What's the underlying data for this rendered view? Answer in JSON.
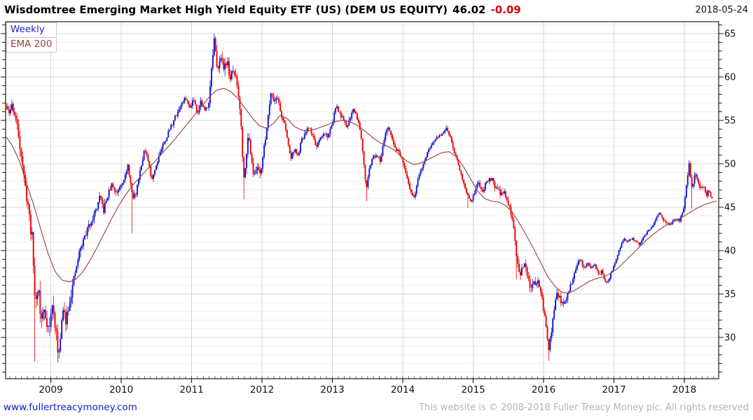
{
  "header": {
    "title": "Wisdomtree Emerging Market High Yield Equity ETF (US) (DEM US EQUITY)",
    "price": "46.02",
    "change": "-0.09",
    "date": "2018-05-24"
  },
  "legend": [
    {
      "label": "Weekly",
      "color": "#2424cc"
    },
    {
      "label": "EMA 200",
      "color": "#99403d"
    }
  ],
  "footer": {
    "site": "www.fullertreacymoney.com",
    "copyright": "This website is © 2008-2018 Fuller Treacy Money plc. All rights reserved"
  },
  "chart_data": {
    "type": "candlestick",
    "title": "Wisdomtree Emerging Market High Yield Equity ETF (US) (DEM US EQUITY)",
    "interval": "Weekly",
    "overlay": "EMA 200",
    "last_close": 46.02,
    "change": -0.09,
    "x_ticks": [
      2009,
      2010,
      2011,
      2012,
      2013,
      2014,
      2015,
      2016,
      2017,
      2018
    ],
    "y_ticks": [
      65,
      60,
      55,
      50,
      45,
      40,
      35,
      30
    ],
    "y_minor_step": 1,
    "x_range": [
      2008.36,
      2018.49
    ],
    "y_range": [
      25.2,
      66.4
    ],
    "up_color": "#1414cc",
    "down_color": "#ee0000",
    "ema_color": "#99403d",
    "grid_major_color": "#d4d4d4",
    "grid_minor_color": "#efefef",
    "weeks_per_year": 52.18,
    "close_anchors": [
      [
        2008.37,
        56.6
      ],
      [
        2008.4,
        55.6
      ],
      [
        2008.45,
        56.8
      ],
      [
        2008.5,
        55.2
      ],
      [
        2008.55,
        53.0
      ],
      [
        2008.6,
        50.0
      ],
      [
        2008.63,
        47.3
      ],
      [
        2008.67,
        45.8
      ],
      [
        2008.7,
        43.5
      ],
      [
        2008.74,
        41.0
      ],
      [
        2008.78,
        33.5
      ],
      [
        2008.82,
        36.4
      ],
      [
        2008.86,
        31.6
      ],
      [
        2008.9,
        33.4
      ],
      [
        2008.94,
        32.0
      ],
      [
        2008.98,
        30.8
      ],
      [
        2009.02,
        33.8
      ],
      [
        2009.06,
        31.6
      ],
      [
        2009.1,
        28.3
      ],
      [
        2009.14,
        30.0
      ],
      [
        2009.17,
        33.2
      ],
      [
        2009.21,
        32.0
      ],
      [
        2009.26,
        34.0
      ],
      [
        2009.32,
        36.2
      ],
      [
        2009.4,
        39.6
      ],
      [
        2009.48,
        41.6
      ],
      [
        2009.56,
        43.2
      ],
      [
        2009.64,
        44.6
      ],
      [
        2009.7,
        46.2
      ],
      [
        2009.75,
        44.6
      ],
      [
        2009.81,
        46.4
      ],
      [
        2009.87,
        47.6
      ],
      [
        2009.93,
        46.6
      ],
      [
        2010.0,
        47.8
      ],
      [
        2010.06,
        48.6
      ],
      [
        2010.1,
        49.8
      ],
      [
        2010.16,
        46.0
      ],
      [
        2010.21,
        46.6
      ],
      [
        2010.27,
        49.4
      ],
      [
        2010.33,
        51.6
      ],
      [
        2010.38,
        50.4
      ],
      [
        2010.43,
        48.2
      ],
      [
        2010.49,
        49.6
      ],
      [
        2010.55,
        51.4
      ],
      [
        2010.62,
        52.6
      ],
      [
        2010.7,
        54.2
      ],
      [
        2010.78,
        55.6
      ],
      [
        2010.85,
        56.8
      ],
      [
        2010.92,
        57.6
      ],
      [
        2010.97,
        56.4
      ],
      [
        2011.03,
        57.6
      ],
      [
        2011.08,
        55.9
      ],
      [
        2011.13,
        57.2
      ],
      [
        2011.19,
        56.0
      ],
      [
        2011.24,
        57.0
      ],
      [
        2011.28,
        60.5
      ],
      [
        2011.32,
        64.3
      ],
      [
        2011.36,
        60.8
      ],
      [
        2011.4,
        62.4
      ],
      [
        2011.45,
        61.2
      ],
      [
        2011.5,
        61.9
      ],
      [
        2011.55,
        59.8
      ],
      [
        2011.6,
        60.8
      ],
      [
        2011.65,
        58.9
      ],
      [
        2011.7,
        55.5
      ],
      [
        2011.74,
        48.0
      ],
      [
        2011.78,
        51.5
      ],
      [
        2011.81,
        53.2
      ],
      [
        2011.85,
        50.8
      ],
      [
        2011.89,
        48.3
      ],
      [
        2011.93,
        49.8
      ],
      [
        2011.98,
        49.0
      ],
      [
        2012.03,
        51.8
      ],
      [
        2012.08,
        55.0
      ],
      [
        2012.13,
        58.6
      ],
      [
        2012.17,
        57.2
      ],
      [
        2012.22,
        57.8
      ],
      [
        2012.27,
        55.6
      ],
      [
        2012.31,
        54.9
      ],
      [
        2012.36,
        52.8
      ],
      [
        2012.41,
        50.6
      ],
      [
        2012.46,
        51.8
      ],
      [
        2012.51,
        50.8
      ],
      [
        2012.56,
        52.6
      ],
      [
        2012.61,
        53.4
      ],
      [
        2012.67,
        54.3
      ],
      [
        2012.72,
        53.2
      ],
      [
        2012.78,
        51.9
      ],
      [
        2012.83,
        52.8
      ],
      [
        2012.89,
        53.6
      ],
      [
        2012.94,
        53.1
      ],
      [
        2013.0,
        54.8
      ],
      [
        2013.05,
        56.6
      ],
      [
        2013.1,
        55.9
      ],
      [
        2013.15,
        55.1
      ],
      [
        2013.2,
        54.2
      ],
      [
        2013.25,
        55.3
      ],
      [
        2013.3,
        56.4
      ],
      [
        2013.35,
        55.4
      ],
      [
        2013.4,
        53.8
      ],
      [
        2013.44,
        50.8
      ],
      [
        2013.48,
        47.1
      ],
      [
        2013.53,
        49.6
      ],
      [
        2013.58,
        50.8
      ],
      [
        2013.63,
        51.2
      ],
      [
        2013.68,
        50.2
      ],
      [
        2013.73,
        52.8
      ],
      [
        2013.78,
        54.2
      ],
      [
        2013.83,
        53.3
      ],
      [
        2013.88,
        52.0
      ],
      [
        2013.94,
        51.4
      ],
      [
        2014.0,
        50.1
      ],
      [
        2014.06,
        48.2
      ],
      [
        2014.12,
        46.6
      ],
      [
        2014.17,
        46.2
      ],
      [
        2014.23,
        48.7
      ],
      [
        2014.3,
        50.2
      ],
      [
        2014.38,
        51.8
      ],
      [
        2014.46,
        52.8
      ],
      [
        2014.54,
        53.3
      ],
      [
        2014.62,
        54.0
      ],
      [
        2014.68,
        53.0
      ],
      [
        2014.74,
        51.2
      ],
      [
        2014.8,
        49.6
      ],
      [
        2014.86,
        48.0
      ],
      [
        2014.92,
        46.3
      ],
      [
        2014.97,
        45.3
      ],
      [
        2015.03,
        47.0
      ],
      [
        2015.08,
        47.9
      ],
      [
        2015.13,
        46.5
      ],
      [
        2015.19,
        48.0
      ],
      [
        2015.26,
        48.4
      ],
      [
        2015.32,
        47.2
      ],
      [
        2015.38,
        46.6
      ],
      [
        2015.44,
        46.9
      ],
      [
        2015.5,
        45.3
      ],
      [
        2015.56,
        43.4
      ],
      [
        2015.62,
        39.0
      ],
      [
        2015.67,
        37.3
      ],
      [
        2015.72,
        38.6
      ],
      [
        2015.77,
        37.0
      ],
      [
        2015.82,
        35.4
      ],
      [
        2015.87,
        36.3
      ],
      [
        2015.92,
        36.6
      ],
      [
        2015.97,
        34.9
      ],
      [
        2016.02,
        32.0
      ],
      [
        2016.07,
        28.6
      ],
      [
        2016.11,
        30.3
      ],
      [
        2016.15,
        33.2
      ],
      [
        2016.19,
        35.3
      ],
      [
        2016.24,
        34.2
      ],
      [
        2016.29,
        33.7
      ],
      [
        2016.34,
        35.0
      ],
      [
        2016.4,
        36.4
      ],
      [
        2016.46,
        38.0
      ],
      [
        2016.52,
        39.1
      ],
      [
        2016.57,
        38.0
      ],
      [
        2016.62,
        38.5
      ],
      [
        2016.68,
        38.0
      ],
      [
        2016.73,
        38.3
      ],
      [
        2016.78,
        37.2
      ],
      [
        2016.83,
        37.7
      ],
      [
        2016.88,
        36.2
      ],
      [
        2016.93,
        36.7
      ],
      [
        2016.98,
        37.9
      ],
      [
        2017.04,
        39.2
      ],
      [
        2017.1,
        40.7
      ],
      [
        2017.15,
        41.3
      ],
      [
        2017.2,
        41.0
      ],
      [
        2017.25,
        41.4
      ],
      [
        2017.31,
        41.1
      ],
      [
        2017.36,
        40.6
      ],
      [
        2017.42,
        41.5
      ],
      [
        2017.48,
        42.3
      ],
      [
        2017.54,
        42.8
      ],
      [
        2017.6,
        43.6
      ],
      [
        2017.64,
        44.3
      ],
      [
        2017.69,
        43.7
      ],
      [
        2017.74,
        43.1
      ],
      [
        2017.79,
        42.9
      ],
      [
        2017.84,
        43.4
      ],
      [
        2017.89,
        43.6
      ],
      [
        2017.94,
        43.5
      ],
      [
        2017.99,
        45.0
      ],
      [
        2018.03,
        47.6
      ],
      [
        2018.07,
        50.0
      ],
      [
        2018.11,
        46.9
      ],
      [
        2018.15,
        48.9
      ],
      [
        2018.19,
        48.2
      ],
      [
        2018.23,
        47.1
      ],
      [
        2018.27,
        47.5
      ],
      [
        2018.31,
        46.3
      ],
      [
        2018.34,
        46.9
      ],
      [
        2018.37,
        46.4
      ],
      [
        2018.4,
        46.02
      ]
    ],
    "ema_anchors": [
      [
        2008.36,
        53.2
      ],
      [
        2008.46,
        52.0
      ],
      [
        2008.56,
        50.2
      ],
      [
        2008.66,
        47.6
      ],
      [
        2008.76,
        45.2
      ],
      [
        2008.86,
        42.4
      ],
      [
        2008.96,
        39.7
      ],
      [
        2009.06,
        37.6
      ],
      [
        2009.16,
        36.6
      ],
      [
        2009.26,
        36.4
      ],
      [
        2009.36,
        36.7
      ],
      [
        2009.46,
        37.6
      ],
      [
        2009.56,
        38.9
      ],
      [
        2009.66,
        40.4
      ],
      [
        2009.76,
        42.0
      ],
      [
        2009.86,
        43.6
      ],
      [
        2009.96,
        45.1
      ],
      [
        2010.06,
        46.4
      ],
      [
        2010.16,
        47.5
      ],
      [
        2010.26,
        48.4
      ],
      [
        2010.36,
        49.3
      ],
      [
        2010.46,
        50.1
      ],
      [
        2010.56,
        51.0
      ],
      [
        2010.66,
        51.9
      ],
      [
        2010.76,
        52.8
      ],
      [
        2010.86,
        53.8
      ],
      [
        2010.96,
        54.8
      ],
      [
        2011.06,
        55.8
      ],
      [
        2011.16,
        56.8
      ],
      [
        2011.26,
        57.8
      ],
      [
        2011.36,
        58.5
      ],
      [
        2011.46,
        58.7
      ],
      [
        2011.56,
        58.3
      ],
      [
        2011.66,
        57.5
      ],
      [
        2011.76,
        56.4
      ],
      [
        2011.86,
        55.3
      ],
      [
        2011.96,
        54.4
      ],
      [
        2012.06,
        54.1
      ],
      [
        2012.16,
        54.6
      ],
      [
        2012.26,
        55.6
      ],
      [
        2012.36,
        55.2
      ],
      [
        2012.46,
        54.3
      ],
      [
        2012.56,
        53.9
      ],
      [
        2012.66,
        53.8
      ],
      [
        2012.76,
        54.0
      ],
      [
        2012.86,
        54.3
      ],
      [
        2012.96,
        54.6
      ],
      [
        2013.06,
        54.9
      ],
      [
        2013.16,
        55.0
      ],
      [
        2013.26,
        54.8
      ],
      [
        2013.36,
        54.4
      ],
      [
        2013.46,
        53.8
      ],
      [
        2013.56,
        53.1
      ],
      [
        2013.66,
        52.5
      ],
      [
        2013.76,
        52.1
      ],
      [
        2013.86,
        51.7
      ],
      [
        2013.96,
        51.0
      ],
      [
        2014.06,
        50.3
      ],
      [
        2014.16,
        49.9
      ],
      [
        2014.26,
        50.1
      ],
      [
        2014.36,
        50.5
      ],
      [
        2014.46,
        50.9
      ],
      [
        2014.56,
        51.3
      ],
      [
        2014.66,
        51.4
      ],
      [
        2014.76,
        50.8
      ],
      [
        2014.86,
        49.7
      ],
      [
        2014.96,
        48.3
      ],
      [
        2015.06,
        46.9
      ],
      [
        2015.16,
        46.0
      ],
      [
        2015.26,
        45.7
      ],
      [
        2015.36,
        45.6
      ],
      [
        2015.46,
        45.2
      ],
      [
        2015.56,
        44.4
      ],
      [
        2015.66,
        43.1
      ],
      [
        2015.76,
        41.7
      ],
      [
        2015.86,
        40.2
      ],
      [
        2015.96,
        38.6
      ],
      [
        2016.06,
        37.0
      ],
      [
        2016.16,
        35.9
      ],
      [
        2016.26,
        35.2
      ],
      [
        2016.36,
        35.1
      ],
      [
        2016.46,
        35.5
      ],
      [
        2016.56,
        36.0
      ],
      [
        2016.66,
        36.5
      ],
      [
        2016.76,
        36.8
      ],
      [
        2016.86,
        37.0
      ],
      [
        2016.96,
        37.4
      ],
      [
        2017.06,
        38.0
      ],
      [
        2017.16,
        38.8
      ],
      [
        2017.26,
        39.6
      ],
      [
        2017.36,
        40.4
      ],
      [
        2017.46,
        41.2
      ],
      [
        2017.56,
        41.9
      ],
      [
        2017.66,
        42.5
      ],
      [
        2017.76,
        43.0
      ],
      [
        2017.86,
        43.4
      ],
      [
        2017.96,
        43.8
      ],
      [
        2018.06,
        44.3
      ],
      [
        2018.16,
        44.8
      ],
      [
        2018.26,
        45.2
      ],
      [
        2018.36,
        45.5
      ],
      [
        2018.45,
        45.7
      ]
    ],
    "wick_events": [
      {
        "year": 2008.78,
        "type": "low",
        "value": 27.2
      },
      {
        "year": 2009.1,
        "type": "low",
        "value": 27.1
      },
      {
        "year": 2010.16,
        "type": "low",
        "value": 42.0
      },
      {
        "year": 2011.32,
        "type": "high",
        "value": 65.0
      },
      {
        "year": 2011.74,
        "type": "low",
        "value": 45.9
      },
      {
        "year": 2013.48,
        "type": "low",
        "value": 45.7
      },
      {
        "year": 2014.92,
        "type": "low",
        "value": 44.9
      },
      {
        "year": 2015.62,
        "type": "low",
        "value": 36.7
      },
      {
        "year": 2016.07,
        "type": "low",
        "value": 27.3
      },
      {
        "year": 2018.07,
        "type": "high",
        "value": 50.4
      },
      {
        "year": 2018.11,
        "type": "low",
        "value": 44.8
      }
    ],
    "volatility_anchors": [
      [
        2008.37,
        0.9
      ],
      [
        2008.75,
        1.8
      ],
      [
        2009.15,
        1.5
      ],
      [
        2009.6,
        0.8
      ],
      [
        2010.2,
        0.6
      ],
      [
        2011.0,
        0.55
      ],
      [
        2011.35,
        1.2
      ],
      [
        2011.8,
        1.0
      ],
      [
        2012.3,
        0.6
      ],
      [
        2013.2,
        0.5
      ],
      [
        2013.9,
        0.5
      ],
      [
        2014.6,
        0.4
      ],
      [
        2015.1,
        0.5
      ],
      [
        2015.7,
        0.9
      ],
      [
        2016.1,
        0.8
      ],
      [
        2016.6,
        0.4
      ],
      [
        2017.3,
        0.28
      ],
      [
        2017.9,
        0.35
      ],
      [
        2018.1,
        0.7
      ],
      [
        2018.4,
        0.4
      ]
    ]
  }
}
